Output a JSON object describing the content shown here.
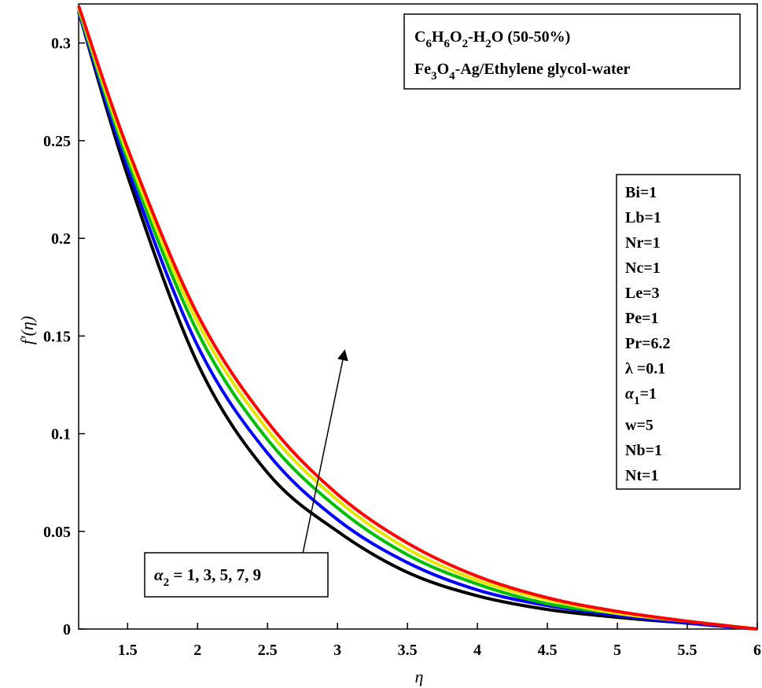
{
  "chart_data": {
    "type": "line",
    "title": "",
    "xlabel": "η",
    "ylabel": "f′(η)",
    "xlim": [
      1.15,
      6.0
    ],
    "ylim": [
      0,
      0.32
    ],
    "xticks": [
      1.5,
      2,
      2.5,
      3,
      3.5,
      4,
      4.5,
      5,
      5.5,
      6
    ],
    "yticks": [
      0,
      0.05,
      0.1,
      0.15,
      0.2,
      0.25,
      0.3
    ],
    "grid": false,
    "series": [
      {
        "color": "#000000",
        "x": [
          1.15,
          1.5,
          2,
          2.5,
          3,
          3.5,
          4,
          4.5,
          5,
          5.5,
          6
        ],
        "values": [
          0.316,
          0.232,
          0.136,
          0.08,
          0.05,
          0.029,
          0.017,
          0.01,
          0.006,
          0.003,
          0.0
        ]
      },
      {
        "color": "#0000ff",
        "x": [
          1.15,
          1.5,
          2,
          2.5,
          3,
          3.5,
          4,
          4.5,
          5,
          5.5,
          6
        ],
        "values": [
          0.316,
          0.236,
          0.145,
          0.09,
          0.056,
          0.034,
          0.02,
          0.012,
          0.007,
          0.003,
          0.0
        ]
      },
      {
        "color": "#00c000",
        "x": [
          1.15,
          1.5,
          2,
          2.5,
          3,
          3.5,
          4,
          4.5,
          5,
          5.5,
          6
        ],
        "values": [
          0.317,
          0.24,
          0.152,
          0.097,
          0.062,
          0.038,
          0.023,
          0.013,
          0.008,
          0.004,
          0.0
        ]
      },
      {
        "color": "#e6e600",
        "x": [
          1.15,
          1.5,
          2,
          2.5,
          3,
          3.5,
          4,
          4.5,
          5,
          5.5,
          6
        ],
        "values": [
          0.318,
          0.243,
          0.157,
          0.102,
          0.066,
          0.041,
          0.025,
          0.015,
          0.008,
          0.004,
          0.0
        ]
      },
      {
        "color": "#ff0000",
        "x": [
          1.15,
          1.5,
          2,
          2.5,
          3,
          3.5,
          4,
          4.5,
          5,
          5.5,
          6
        ],
        "values": [
          0.319,
          0.246,
          0.161,
          0.106,
          0.069,
          0.044,
          0.027,
          0.016,
          0.009,
          0.004,
          0.0
        ]
      }
    ],
    "legend_top": {
      "position": "top-right",
      "line1": {
        "parts": [
          "C",
          "6",
          "H",
          "6",
          "O",
          "2",
          "-H",
          "2",
          "O (50-50%)"
        ]
      },
      "line2": {
        "parts": [
          "Fe",
          "3",
          "O",
          "4",
          "-Ag/Ethylene glycol-water"
        ]
      }
    },
    "params_box": {
      "position": "right",
      "items": [
        "Bi=1",
        "Lb=1",
        "Nr=1",
        "Nc=1",
        "Le=3",
        "Pe=1",
        "Pr=6.2"
      ],
      "lambda_label": "λ =0.1",
      "alpha1": {
        "sym": "α",
        "sub": "1",
        "rest": "=1"
      },
      "items_after": [
        "w=5",
        "Nb=1",
        "Nt=1"
      ]
    },
    "annotation": {
      "sym": "α",
      "sub": "2",
      "rest": " = 1, 3, 5, 7, 9",
      "arrow_from": [
        2.75,
        0.038
      ],
      "arrow_to": [
        3.05,
        0.142
      ]
    }
  }
}
